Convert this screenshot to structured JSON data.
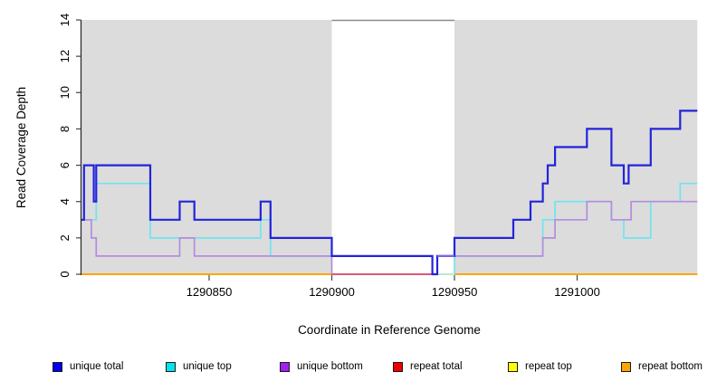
{
  "chart_data": {
    "type": "line",
    "title": "",
    "xlabel": "Coordinate in Reference Genome",
    "ylabel": "Read Coverage Depth",
    "xlim": [
      1290798,
      1291049
    ],
    "ylim": [
      0,
      14
    ],
    "x_ticks": [
      1290850,
      1290900,
      1290950,
      1291000
    ],
    "y_ticks": [
      0,
      2,
      4,
      6,
      8,
      10,
      12,
      14
    ],
    "grid": false,
    "plot_bg": "#DCDCDC",
    "highlight_region": {
      "x1": 1290900,
      "x2": 1290950,
      "color": "#FFFFFF",
      "top_edge_color": "#8A8A8A"
    },
    "legend_position": "bottom",
    "legend": [
      {
        "label": "unique total",
        "color": "#0000EE"
      },
      {
        "label": "unique top",
        "color": "#00E5EE"
      },
      {
        "label": "unique bottom",
        "color": "#A020F0"
      },
      {
        "label": "repeat total",
        "color": "#EE0000"
      },
      {
        "label": "repeat top",
        "color": "#FFFF00"
      },
      {
        "label": "repeat bottom",
        "color": "#FFA500"
      }
    ],
    "series": [
      {
        "name": "repeat total",
        "line_color": "#CD2A2A",
        "line_width": 1.8,
        "z": 1,
        "steps": [
          [
            1290798,
            0
          ]
        ]
      },
      {
        "name": "repeat top",
        "line_color": "#FFEB00",
        "line_width": 1.8,
        "z": 2,
        "steps": [
          [
            1290798,
            0
          ]
        ]
      },
      {
        "name": "repeat bottom",
        "line_color": "#FFA500",
        "line_width": 2,
        "z": 3,
        "steps": [
          [
            1290798,
            0
          ]
        ]
      },
      {
        "name": "unique top",
        "line_color": "#6FE4EF",
        "line_width": 1.7,
        "z": 4,
        "steps": [
          [
            1290798,
            3
          ],
          [
            1290804,
            5
          ],
          [
            1290826,
            2
          ],
          [
            1290871,
            3
          ],
          [
            1290875,
            1
          ],
          [
            1290941,
            0
          ],
          [
            1290950,
            1
          ],
          [
            1290986,
            3
          ],
          [
            1290991,
            4
          ],
          [
            1291014,
            3
          ],
          [
            1291019,
            2
          ],
          [
            1291030,
            4
          ],
          [
            1291042,
            5
          ]
        ]
      },
      {
        "name": "unique bottom",
        "line_color": "#B58BDE",
        "line_width": 1.7,
        "z": 5,
        "steps": [
          [
            1290798,
            3
          ],
          [
            1290802,
            2
          ],
          [
            1290804,
            1
          ],
          [
            1290838,
            2
          ],
          [
            1290844,
            1
          ],
          [
            1290900,
            0
          ],
          [
            1290943,
            1
          ],
          [
            1290986,
            2
          ],
          [
            1290991,
            3
          ],
          [
            1291004,
            4
          ],
          [
            1291014,
            3
          ],
          [
            1291022,
            4
          ]
        ]
      },
      {
        "name": "unique total",
        "line_color": "#2323DC",
        "line_width": 2.2,
        "z": 7,
        "steps": [
          [
            1290798,
            3
          ],
          [
            1290799,
            6
          ],
          [
            1290803,
            4
          ],
          [
            1290804,
            6
          ],
          [
            1290826,
            3
          ],
          [
            1290838,
            4
          ],
          [
            1290844,
            3
          ],
          [
            1290871,
            4
          ],
          [
            1290875,
            2
          ],
          [
            1290900,
            1
          ],
          [
            1290941,
            0
          ],
          [
            1290943,
            1
          ],
          [
            1290950,
            2
          ],
          [
            1290974,
            3
          ],
          [
            1290981,
            4
          ],
          [
            1290986,
            5
          ],
          [
            1290988,
            6
          ],
          [
            1290991,
            7
          ],
          [
            1291004,
            8
          ],
          [
            1291014,
            6
          ],
          [
            1291019,
            5
          ],
          [
            1291021,
            6
          ],
          [
            1291030,
            8
          ],
          [
            1291042,
            9
          ]
        ]
      }
    ],
    "overlay_segments": [
      {
        "name": "zero-line-highlight-left",
        "y": 0,
        "x1": 1290900,
        "x2": 1290941,
        "color": "#DE5372",
        "line_width": 1.8,
        "z": 6
      },
      {
        "name": "zero-line-highlight-right",
        "y": 0,
        "x1": 1290941,
        "x2": 1290950,
        "color": "#C6EBD2",
        "line_width": 1.8,
        "z": 6
      },
      {
        "name": "overlap-blue-purple",
        "y": 1,
        "x1": 1290943,
        "x2": 1290950,
        "color": "#7C6AEA",
        "line_width": 2,
        "z": 8
      }
    ]
  }
}
